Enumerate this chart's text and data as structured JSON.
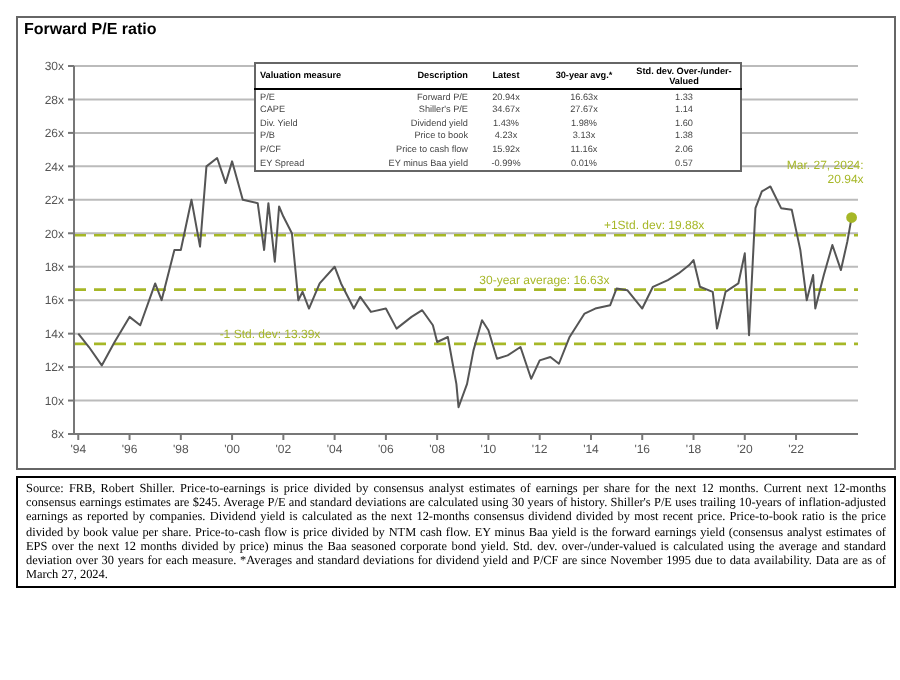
{
  "chart_data": {
    "type": "line",
    "title": "Forward P/E ratio",
    "x": [
      "1994-01",
      "1994-06",
      "1994-12",
      "1995-06",
      "1996-01",
      "1996-06",
      "1997-01",
      "1997-04",
      "1997-10",
      "1998-01",
      "1998-06",
      "1998-10",
      "1999-01",
      "1999-06",
      "1999-10",
      "2000-01",
      "2000-06",
      "2001-01",
      "2001-04",
      "2001-06",
      "2001-09",
      "2001-11",
      "2002-01",
      "2002-05",
      "2002-08",
      "2002-10",
      "2003-01",
      "2003-06",
      "2004-01",
      "2004-04",
      "2004-10",
      "2005-01",
      "2005-06",
      "2006-01",
      "2006-06",
      "2007-01",
      "2007-06",
      "2007-11",
      "2008-01",
      "2008-06",
      "2008-10",
      "2008-11",
      "2009-03",
      "2009-06",
      "2009-10",
      "2010-01",
      "2010-05",
      "2010-10",
      "2011-04",
      "2011-09",
      "2012-01",
      "2012-06",
      "2012-10",
      "2013-03",
      "2013-10",
      "2014-03",
      "2014-10",
      "2015-01",
      "2015-06",
      "2016-01",
      "2016-06",
      "2017-01",
      "2017-06",
      "2017-11",
      "2018-01",
      "2018-04",
      "2018-10",
      "2018-12",
      "2019-04",
      "2019-10",
      "2020-01",
      "2020-03",
      "2020-06",
      "2020-09",
      "2021-01",
      "2021-06",
      "2021-11",
      "2022-03",
      "2022-06",
      "2022-09",
      "2022-10",
      "2023-02",
      "2023-06",
      "2023-10",
      "2024-01",
      "2024-03"
    ],
    "series": [
      {
        "color": "#555555",
        "values": [
          14,
          13.2,
          12.1,
          13.5,
          15,
          14.5,
          17,
          16,
          19,
          19,
          22,
          19.2,
          24,
          24.5,
          23,
          24.3,
          22,
          21.8,
          19,
          21.8,
          18.3,
          21.6,
          21,
          20,
          16,
          16.5,
          15.5,
          17,
          18,
          17,
          15.5,
          16.2,
          15.3,
          15.5,
          14.3,
          15,
          15.4,
          14.5,
          13.5,
          13.8,
          11,
          9.6,
          11,
          13,
          14.8,
          14.2,
          12.5,
          12.7,
          13.2,
          11.3,
          12.4,
          12.6,
          12.2,
          13.8,
          15.2,
          15.5,
          15.7,
          16.7,
          16.6,
          15.5,
          16.8,
          17.2,
          17.6,
          18.1,
          18.4,
          16.8,
          16.5,
          14.3,
          16.5,
          17,
          18.8,
          13.9,
          21.5,
          22.5,
          22.8,
          21.5,
          21.4,
          19,
          16,
          17.5,
          15.5,
          17.5,
          19.3,
          17.8,
          19.5,
          20.94
        ]
      }
    ],
    "xlim": [
      "1993-11",
      "2024-06"
    ],
    "xticks": [
      {
        "value": "1994-01",
        "label": "'94"
      },
      {
        "value": "1996-01",
        "label": "'96"
      },
      {
        "value": "1998-01",
        "label": "'98"
      },
      {
        "value": "2000-01",
        "label": "'00"
      },
      {
        "value": "2002-01",
        "label": "'02"
      },
      {
        "value": "2004-01",
        "label": "'04"
      },
      {
        "value": "2006-01",
        "label": "'06"
      },
      {
        "value": "2008-01",
        "label": "'08"
      },
      {
        "value": "2010-01",
        "label": "'10"
      },
      {
        "value": "2012-01",
        "label": "'12"
      },
      {
        "value": "2014-01",
        "label": "'14"
      },
      {
        "value": "2016-01",
        "label": "'16"
      },
      {
        "value": "2018-01",
        "label": "'18"
      },
      {
        "value": "2020-01",
        "label": "'20"
      },
      {
        "value": "2022-01",
        "label": "'22"
      }
    ],
    "ylim": [
      8,
      30
    ],
    "yticks": [
      {
        "value": 8,
        "label": "8x"
      },
      {
        "value": 10,
        "label": "10x"
      },
      {
        "value": 12,
        "label": "12x"
      },
      {
        "value": 14,
        "label": "14x"
      },
      {
        "value": 16,
        "label": "16x"
      },
      {
        "value": 18,
        "label": "18x"
      },
      {
        "value": 20,
        "label": "20x"
      },
      {
        "value": 22,
        "label": "22x"
      },
      {
        "value": 24,
        "label": "24x"
      },
      {
        "value": 26,
        "label": "26x"
      },
      {
        "value": 28,
        "label": "28x"
      },
      {
        "value": 30,
        "label": "30x"
      }
    ],
    "grid": "y",
    "legend": false,
    "marker": "none",
    "line_style": "solid",
    "ref_lines": [
      {
        "axis": "y",
        "value": 19.88,
        "label": "+1Std. dev: 19.88x",
        "color": "#a6b727",
        "line_style": "dashed"
      },
      {
        "axis": "y",
        "value": 16.63,
        "label": "30-year average: 16.63x",
        "color": "#a6b727",
        "line_style": "dashed"
      },
      {
        "axis": "y",
        "value": 13.39,
        "label": "-1 Std. dev: 13.39x",
        "color": "#a6b727",
        "line_style": "dashed"
      }
    ],
    "annotations": [
      {
        "text": "Mar. 27, 2024: 20.94x",
        "x": "2024-03",
        "y": 20.94
      },
      "Source: FRB, Robert Shiller. Price-to-earnings is price divided by consensus analyst estimates of earnings per share for the next 12 months. Current next 12-months consensus earnings estimates are $245. Average P/E and standard deviations are calculated using 30 years of history. Shiller's P/E uses trailing 10-years of inflation-adjusted earnings as reported by companies. Dividend yield is calculated as the next 12-months consensus dividend divided by most recent price. Price-to-book ratio is the price divided by book value per share. Price-to-cash flow is price divided by NTM cash flow. EY minus Baa yield is the forward earnings yield (consensus analyst estimates of EPS over the next 12 months divided by price) minus the Baa seasoned corporate bond yield. Std. dev. over-/under-valued is calculated using the average and standard deviation over 30 years for each measure. *Averages and standard deviations for dividend yield and P/CF are since November 1995 due to data availability. Data are as of March 27, 2024.",
      "Valuation measure",
      "Description",
      "Latest",
      "30-year avg.*",
      "Std. dev. Over-/under-Valued",
      "P/E",
      "Forward P/E",
      "20.94x",
      "16.63x",
      "1.33",
      "CAPE",
      "Shiller's P/E",
      "34.67x",
      "27.67x",
      "1.14",
      "Div. Yield",
      "Dividend yield",
      "1.43%",
      "1.98%",
      "1.60",
      "P/B",
      "Price to book",
      "4.23x",
      "3.13x",
      "1.38",
      "P/CF",
      "Price to cash flow",
      "15.92x",
      "11.16x",
      "2.06",
      "EY Spread",
      "EY minus Baa yield",
      "-0.99%",
      "0.01%",
      "0.57"
    ]
  }
}
